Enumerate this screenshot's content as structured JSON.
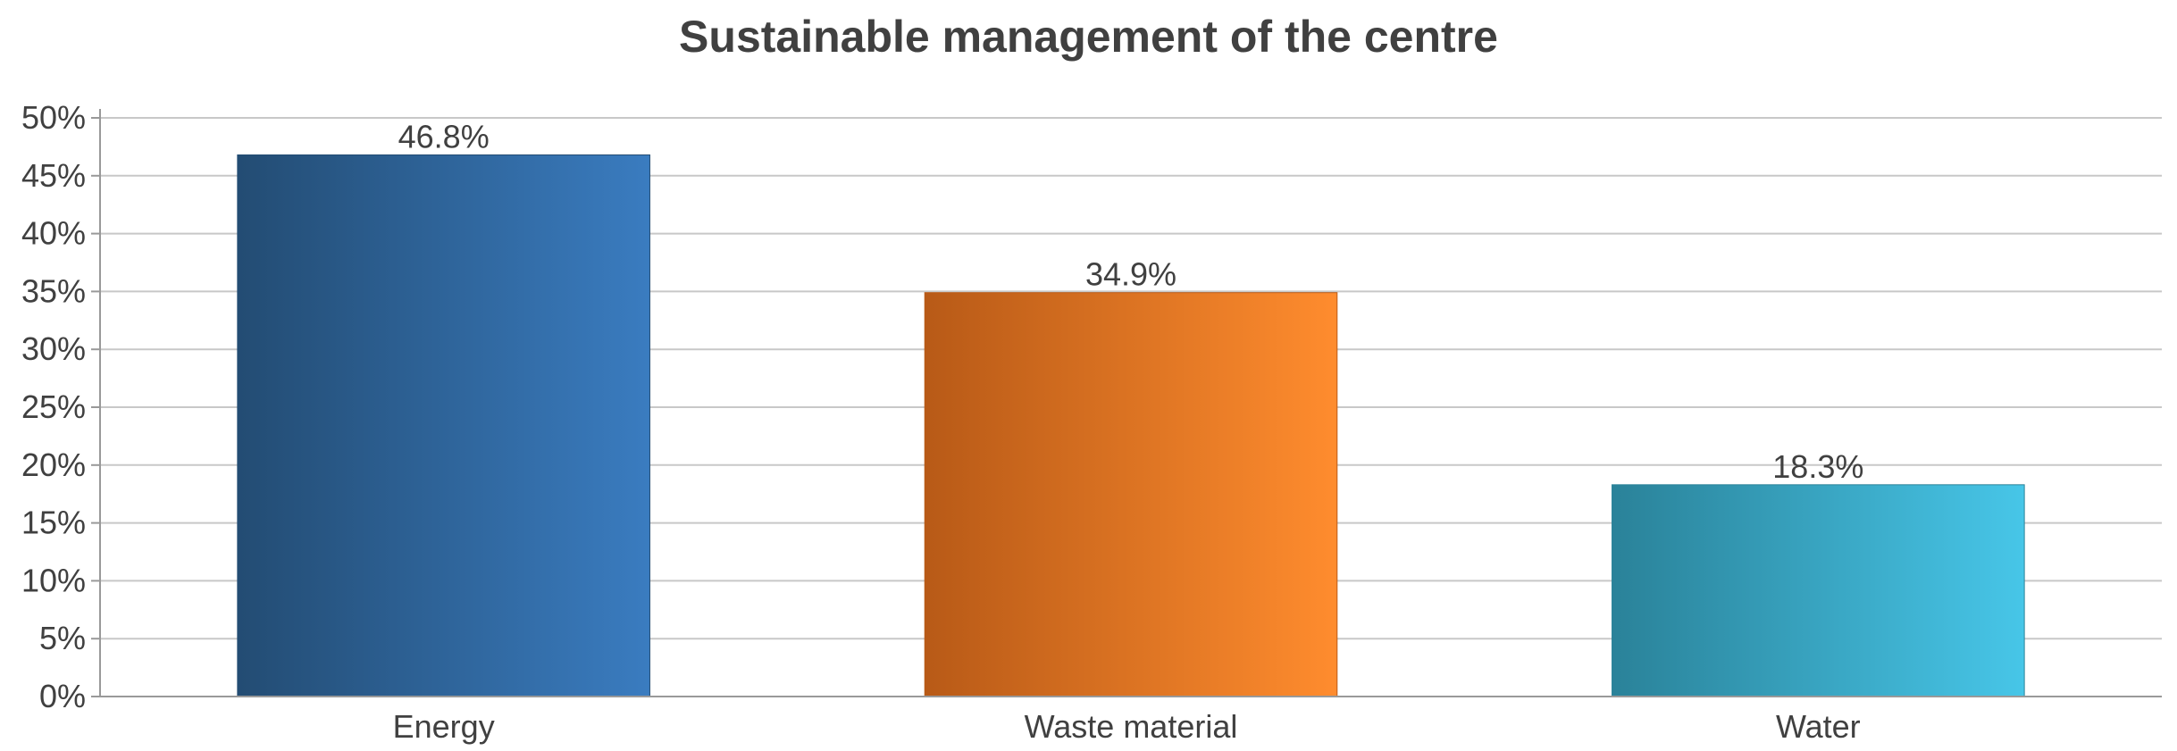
{
  "chart_data": {
    "type": "bar",
    "title": "Sustainable management of the centre",
    "xlabel": "",
    "ylabel": "",
    "categories": [
      "Energy",
      "Waste material",
      "Water"
    ],
    "values": [
      46.8,
      34.9,
      18.3
    ],
    "value_labels": [
      "46.8%",
      "34.9%",
      "18.3%"
    ],
    "ylim": [
      0,
      50
    ],
    "yticks": [
      0,
      5,
      10,
      15,
      20,
      25,
      30,
      35,
      40,
      45,
      50
    ],
    "ytick_labels": [
      "0%",
      "5%",
      "10%",
      "15%",
      "20%",
      "25%",
      "30%",
      "35%",
      "40%",
      "45%",
      "50%"
    ],
    "grid": true,
    "legend": "none",
    "bar_colors": [
      {
        "from": "#234c73",
        "to": "#3a7cc0"
      },
      {
        "from": "#b85a17",
        "to": "#ff8c2e"
      },
      {
        "from": "#2a8299",
        "to": "#47c6e8"
      }
    ],
    "grid_color": "#c8c8c8",
    "axis_color": "#999999"
  }
}
